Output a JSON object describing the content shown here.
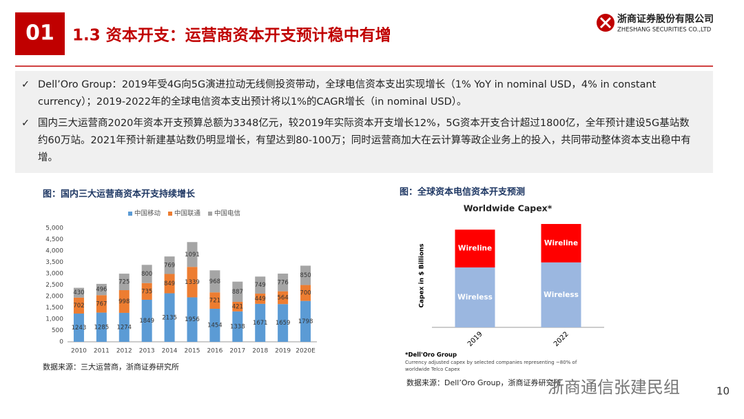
{
  "header": {
    "number": "01",
    "title": "1.3 资本开支：运营商资本开支预计稳中有增",
    "logo_cn": "浙商证券股份有限公司",
    "logo_en": "ZHESHANG SECURITIES CO.,LTD"
  },
  "bullets": [
    "Dell’Oro Group：2019年受4G向5G演进拉动无线侧投资带动，全球电信资本支出实现增长（1% YoY in nominal USD，4% in constant currency）；2019-2022年的全球电信资本支出预计将以1%的CAGR增长（in nominal USD）。",
    "国内三大运营商2020年资本开支预算总额为3348亿元，较2019年实际资本开支增长12%，5G资本开支合计超过1800亿，全年预计建设5G基站数约60万站。2021年预计新建基站数仍明显增长，有望达到80-100万；同时运营商加大在云计算等政企业务上的投入，共同带动整体资本支出稳中有增。"
  ],
  "chart_data": [
    {
      "type": "bar",
      "stacked": true,
      "caption": "图：国内三大运营商资本开支持续增长",
      "legend": "top",
      "data_labels": true,
      "categories": [
        "2010",
        "2011",
        "2012",
        "2013",
        "2014",
        "2015",
        "2016",
        "2017",
        "2018",
        "2019",
        "2020E"
      ],
      "series": [
        {
          "name": "中国移动",
          "color": "#5b9bd5",
          "values": [
            1243,
            1285,
            1274,
            1849,
            2135,
            1956,
            1454,
            1338,
            1671,
            1659,
            1798
          ]
        },
        {
          "name": "中国联通",
          "color": "#ed7d31",
          "values": [
            702,
            767,
            998,
            735,
            849,
            1339,
            721,
            421,
            449,
            564,
            700
          ]
        },
        {
          "name": "中国电信",
          "color": "#a5a5a5",
          "values": [
            430,
            496,
            725,
            800,
            769,
            1091,
            968,
            887,
            749,
            776,
            850
          ]
        }
      ],
      "ylim": [
        0,
        5000
      ],
      "yticks": [
        0,
        500,
        {
          "value": 1000,
          "label": "1,000"
        },
        {
          "value": 1500,
          "label": "1,500"
        },
        {
          "value": 2000,
          "label": "2,000"
        },
        {
          "value": 2500,
          "label": "2,500"
        },
        {
          "value": 3000,
          "label": "3,000"
        },
        {
          "value": 3500,
          "label": "3,500"
        },
        {
          "value": 4000,
          "label": "4,000"
        },
        {
          "value": 4500,
          "label": "4,500"
        },
        {
          "value": 5000,
          "label": "5,000"
        }
      ],
      "source": "数据来源：三大运营商，浙商证券研究所"
    },
    {
      "type": "bar",
      "stacked": true,
      "caption": "图：全球资本电信资本开支预测",
      "legend": "in-bars",
      "title": "Worldwide Capex*",
      "ylabel": "Capex in $ Billions",
      "categories": [
        "2019",
        "2022"
      ],
      "series": [
        {
          "name": "Wireless",
          "color": "#9bb7e0",
          "values": [
            190,
            206
          ]
        },
        {
          "name": "Wireline",
          "color": "#ff0000",
          "values": [
            120,
            122
          ]
        }
      ],
      "footnote_title": "*Dell'Oro Group",
      "footnote": "Currency adjusted capex by selected companies representing ~80% of worldwide Telco Capex",
      "source": "数据来源：Dell’Oro Group，浙商证券研究所"
    }
  ],
  "watermark": "浙商通信张建民组",
  "page_number": "10"
}
